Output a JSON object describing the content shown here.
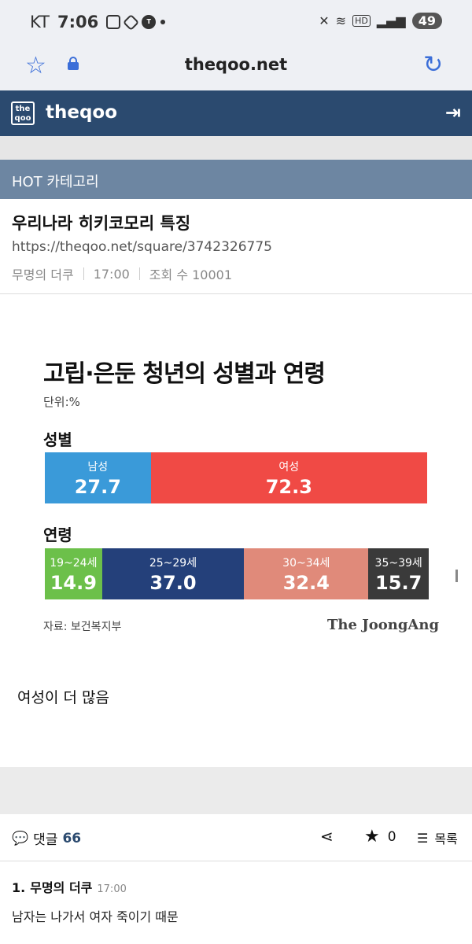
{
  "status_bar": {
    "carrier": "KT",
    "time": "7:06",
    "battery": "49"
  },
  "browser": {
    "url": "theqoo.net"
  },
  "site": {
    "logo_text": "the qoo",
    "name": "theqoo"
  },
  "category": "HOT 카테고리",
  "post": {
    "title": "우리나라 히키코모리 특징",
    "url": "https://theqoo.net/square/3742326775",
    "author": "무명의 더쿠",
    "time": "17:00",
    "views": "조회 수 10001",
    "body_text": "여성이 더 많음"
  },
  "infographic": {
    "title": "고립·은둔 청년의 성별과 연령",
    "unit": "단위:%",
    "gender_heading": "성별",
    "age_heading": "연령",
    "source": "자료: 보건복지부",
    "brand": "The JoongAng",
    "colors": {
      "male": "#3a9ad9",
      "female": "#f04a45",
      "age_19_24": "#6cc04a",
      "age_25_29": "#24407a",
      "age_30_34": "#e08a7a",
      "age_35_39": "#3a3a3a"
    }
  },
  "chart_data": [
    {
      "type": "bar",
      "title": "성별",
      "categories": [
        "남성",
        "여성"
      ],
      "values": [
        27.7,
        72.3
      ]
    },
    {
      "type": "bar",
      "title": "연령",
      "categories": [
        "19~24세",
        "25~29세",
        "30~34세",
        "35~39세"
      ],
      "values": [
        14.9,
        37.0,
        32.4,
        15.7
      ]
    }
  ],
  "gender_display": [
    "27.7",
    "72.3"
  ],
  "age_display": [
    "14.9",
    "37.0",
    "32.4",
    "15.7"
  ],
  "actions": {
    "comments_label": "댓글",
    "comments_count": "66",
    "favorites_count": "0",
    "list_label": "목록"
  },
  "comments": [
    {
      "index": "1.",
      "author": "무명의 더쿠",
      "time": "17:00",
      "text": "남자는 나가서 여자 죽이기 때문"
    }
  ],
  "icons": [
    "star-outline-icon",
    "lock-icon",
    "reload-icon",
    "login-icon",
    "comment-icon",
    "share-icon",
    "star-icon",
    "list-icon"
  ]
}
